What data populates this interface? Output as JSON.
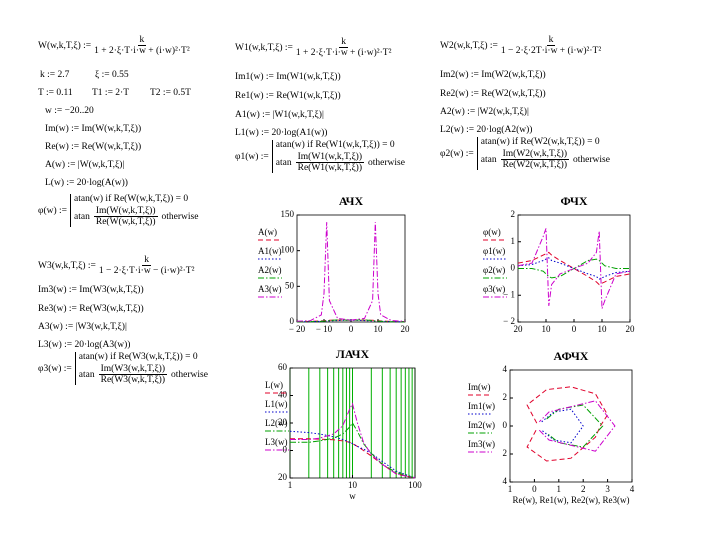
{
  "formulas": [
    {
      "lhs": "W(w,k,T,ξ) :=",
      "num": "k",
      "den": "1 + 2·ξ·T·i·w + (i·w)²·T²"
    },
    {
      "text": "k := 2.7"
    },
    {
      "text": "ξ := 0.55"
    },
    {
      "text": "T := 0.11"
    },
    {
      "text": "T1 := 2·T"
    },
    {
      "text": "T2 := 0.5T"
    },
    {
      "text": "w := −20..20"
    },
    {
      "text": "Im(w) := Im(W(w,k,T,ξ))"
    },
    {
      "text": "Re(w) := Re(W(w,k,T,ξ))"
    },
    {
      "text": "A(w) := |W(w,k,T,ξ)|"
    },
    {
      "text": "L(w) := 20·log(A(w))"
    },
    {
      "lhs": "φ(w) :=",
      "cond": "atan(w)  if  Re(W(w,k,T,ξ)) = 0",
      "fn": "atan",
      "num": "Im(W(w,k,T,ξ))",
      "den": "Re(W(w,k,T,ξ))",
      "else": "otherwise"
    },
    {
      "lhs": "W1(w,k,T,ξ) :=",
      "num": "k",
      "den": "1 + 2·ξ·T·i·w + (i·w)²·T²"
    },
    {
      "text": "Im1(w) := Im(W1(w,k,T,ξ))"
    },
    {
      "text": "Re1(w) := Re(W1(w,k,T,ξ))"
    },
    {
      "text": "A1(w) := |W1(w,k,T,ξ)|"
    },
    {
      "text": "L1(w) := 20·log(A1(w))"
    },
    {
      "lhs": "φ1(w) :=",
      "cond": "atan(w)  if  Re(W1(w,k,T,ξ)) = 0",
      "fn": "atan",
      "num": "Im(W1(w,k,T,ξ))",
      "den": "Re(W1(w,k,T,ξ))",
      "else": "otherwise"
    },
    {
      "lhs": "W2(w,k,T,ξ) :=",
      "num": "k",
      "den": "1 − 2·ξ·2T·i·w + (i·w)²·T²"
    },
    {
      "text": "Im2(w) := Im(W2(w,k,T,ξ))"
    },
    {
      "text": "Re2(w) := Re(W2(w,k,T,ξ))"
    },
    {
      "text": "A2(w) := |W2(w,k,T,ξ)|"
    },
    {
      "text": "L2(w) := 20·log(A2(w))"
    },
    {
      "lhs": "φ2(w) :=",
      "cond": "atan(w)  if  Re(W2(w,k,T,ξ)) = 0",
      "fn": "atan",
      "num": "Im(W2(w,k,T,ξ))",
      "den": "Re(W2(w,k,T,ξ))",
      "else": "otherwise"
    },
    {
      "lhs": "W3(w,k,T,ξ) :=",
      "num": "k",
      "den": "1 − 2·ξ·T·i·w − (i·w)²·T²"
    },
    {
      "text": "Im3(w) := Im(W3(w,k,T,ξ))"
    },
    {
      "text": "Re3(w) := Re(W3(w,k,T,ξ))"
    },
    {
      "text": "A3(w) := |W3(w,k,T,ξ)|"
    },
    {
      "text": "L3(w) := 20·log(A3(w))"
    },
    {
      "lhs": "φ3(w) :=",
      "cond": "atan(w)  if  Re(W3(w,k,T,ξ)) = 0",
      "fn": "atan",
      "num": "Im(W3(w,k,T,ξ))",
      "den": "Re(W3(w,k,T,ξ))",
      "else": "otherwise"
    }
  ],
  "chart_data": [
    {
      "type": "line",
      "title": "АЧХ",
      "xlim": [
        -20,
        20
      ],
      "xticks": [
        {
          "value": -20,
          "label": "− 20"
        },
        {
          "value": -10,
          "label": "− 10"
        },
        0,
        10,
        20
      ],
      "ylim": [
        0,
        150
      ],
      "yticks": [
        0,
        50,
        100,
        150
      ],
      "grid": false,
      "x": [
        -20,
        -15,
        -11,
        -10,
        -9,
        -8,
        -5,
        0,
        5,
        8,
        9,
        10,
        11,
        15,
        20
      ],
      "series": [
        {
          "name": "A(w)",
          "color": "#e0002a",
          "style": "dashed",
          "values": [
            0.5,
            0.8,
            1.5,
            1.8,
            2.1,
            2.4,
            2.7,
            2.7,
            2.7,
            2.4,
            2.1,
            1.8,
            1.5,
            0.8,
            0.5
          ]
        },
        {
          "name": "A1(w)",
          "color": "#0000cc",
          "style": "dotted",
          "values": [
            0.3,
            0.5,
            1,
            1.2,
            1.4,
            1.6,
            2,
            2.7,
            2,
            1.6,
            1.4,
            1.2,
            1,
            0.5,
            0.3
          ]
        },
        {
          "name": "A2(w)",
          "color": "#00a000",
          "style": "dashdot",
          "values": [
            0.2,
            0.4,
            1,
            1.2,
            1.6,
            2,
            3,
            2.7,
            3,
            2,
            1.6,
            1.2,
            1,
            0.4,
            0.2
          ]
        },
        {
          "name": "A3(w)",
          "color": "#cc00cc",
          "style": "dashdot",
          "values": [
            1,
            2,
            10,
            40,
            140,
            30,
            5,
            2.7,
            5,
            30,
            140,
            40,
            10,
            2,
            1
          ]
        }
      ]
    },
    {
      "type": "line",
      "title": "ФЧХ",
      "xlim": [
        -20,
        20
      ],
      "xticks": [
        {
          "value": -20,
          "label": "20"
        },
        {
          "value": -10,
          "label": "10"
        },
        0,
        10,
        20
      ],
      "ylim": [
        -2,
        2
      ],
      "yticks": [
        {
          "value": -2,
          "label": "− 2"
        },
        {
          "value": -1,
          "label": "− 1"
        },
        0,
        1,
        2
      ],
      "grid": false,
      "x": [
        -20,
        -15,
        -11,
        -10,
        -9,
        -8,
        -5,
        0,
        5,
        8,
        9,
        10,
        11,
        15,
        20
      ],
      "series": [
        {
          "name": "φ(w)",
          "color": "#e0002a",
          "style": "dashed",
          "values": [
            0.2,
            0.3,
            0.5,
            0.55,
            0.6,
            0.5,
            0.3,
            0,
            -0.3,
            -0.5,
            -0.6,
            -0.55,
            -0.5,
            -0.3,
            -0.2
          ]
        },
        {
          "name": "φ1(w)",
          "color": "#0000cc",
          "style": "dotted",
          "values": [
            0.1,
            0.15,
            0.3,
            0.35,
            0.4,
            0.3,
            0.2,
            0,
            -0.2,
            -0.3,
            -0.4,
            -0.35,
            -0.3,
            -0.15,
            -0.1
          ]
        },
        {
          "name": "φ2(w)",
          "color": "#00a000",
          "style": "dashdot",
          "values": [
            0,
            0,
            -0.1,
            -0.2,
            -0.3,
            -0.35,
            -0.3,
            0,
            0.3,
            0.35,
            0.3,
            0.2,
            0.1,
            0,
            0
          ]
        },
        {
          "name": "φ3(w)",
          "color": "#cc00cc",
          "style": "dashdot",
          "values": [
            0.1,
            0.2,
            1.2,
            1.5,
            -1.4,
            -0.6,
            -0.2,
            0,
            0.2,
            0.6,
            1.4,
            -1.5,
            -1.2,
            -0.2,
            -0.1
          ]
        }
      ]
    },
    {
      "type": "line",
      "title": "ЛАЧХ",
      "xlabel": "w",
      "log_x": true,
      "xlim": [
        1,
        100
      ],
      "xticks": [
        1,
        10,
        100
      ],
      "ylim": [
        -20,
        60
      ],
      "yticks": [
        {
          "value": -20,
          "label": "20"
        },
        0,
        20,
        40,
        60
      ],
      "grid": true,
      "grid_color": "#00b000",
      "x": [
        1,
        2,
        3,
        5,
        7,
        9,
        10,
        12,
        15,
        20,
        30,
        50,
        100
      ],
      "series": [
        {
          "name": "L(w)",
          "color": "#e0002a",
          "style": "dashed",
          "values": [
            8.6,
            8.5,
            8.3,
            7.8,
            7,
            6,
            5,
            3,
            0,
            -4,
            -10,
            -17,
            -20
          ]
        },
        {
          "name": "L1(w)",
          "color": "#0000cc",
          "style": "dotted",
          "values": [
            14,
            13,
            12,
            10,
            8,
            6,
            5,
            3,
            1,
            -2,
            -8,
            -15,
            -20
          ]
        },
        {
          "name": "L2(w)",
          "color": "#00a000",
          "style": "dashdot",
          "values": [
            6,
            6,
            7,
            9,
            12,
            17,
            20,
            14,
            5,
            -2,
            -10,
            -16,
            -20
          ]
        },
        {
          "name": "L3(w)",
          "color": "#cc00cc",
          "style": "dashdot",
          "values": [
            8,
            8,
            9,
            12,
            18,
            30,
            34,
            20,
            6,
            -3,
            -10,
            -17,
            -20
          ]
        }
      ]
    },
    {
      "type": "line",
      "title": "АФЧХ",
      "xlabel": "Re(w), Re1(w), Re2(w), Re3(w)",
      "xlim": [
        -1,
        4
      ],
      "xticks": [
        {
          "value": -1,
          "label": "1"
        },
        0,
        1,
        2,
        3,
        4
      ],
      "ylim": [
        -4,
        4
      ],
      "yticks": [
        {
          "value": -4,
          "label": "4"
        },
        {
          "value": -2,
          "label": "2"
        },
        0,
        2,
        4
      ],
      "grid": false,
      "series": [
        {
          "name": "Im(w)",
          "color": "#e0002a",
          "style": "dashed",
          "x": [
            0.1,
            -0.3,
            0.5,
            1.5,
            2.5,
            3,
            2.7,
            2.5,
            1.5,
            0.5,
            -0.3,
            0.1
          ],
          "values": [
            0.2,
            1.5,
            2.6,
            2.8,
            2.3,
            0.8,
            0,
            -0.8,
            -2.3,
            -2.5,
            -1.5,
            -0.2
          ]
        },
        {
          "name": "Im1(w)",
          "color": "#0000cc",
          "style": "dotted",
          "x": [
            0.3,
            0.8,
            1.5,
            2,
            1.5,
            0.8,
            0.3
          ],
          "values": [
            0.3,
            1,
            1.2,
            0,
            -1.2,
            -1,
            -0.3
          ]
        },
        {
          "name": "Im2(w)",
          "color": "#00a000",
          "style": "dashdot",
          "x": [
            0.5,
            1,
            2,
            2.8,
            2,
            1,
            0.5
          ],
          "values": [
            0.5,
            1.2,
            1.5,
            0,
            -1.5,
            -1.2,
            -0.5
          ]
        },
        {
          "name": "Im3(w)",
          "color": "#cc00cc",
          "style": "dashdot",
          "x": [
            0.2,
            0.6,
            2.5,
            3.3,
            2.5,
            0.6,
            0.2
          ],
          "values": [
            -0.3,
            -1,
            -1.8,
            0,
            1.8,
            1,
            0.3
          ]
        }
      ]
    }
  ]
}
